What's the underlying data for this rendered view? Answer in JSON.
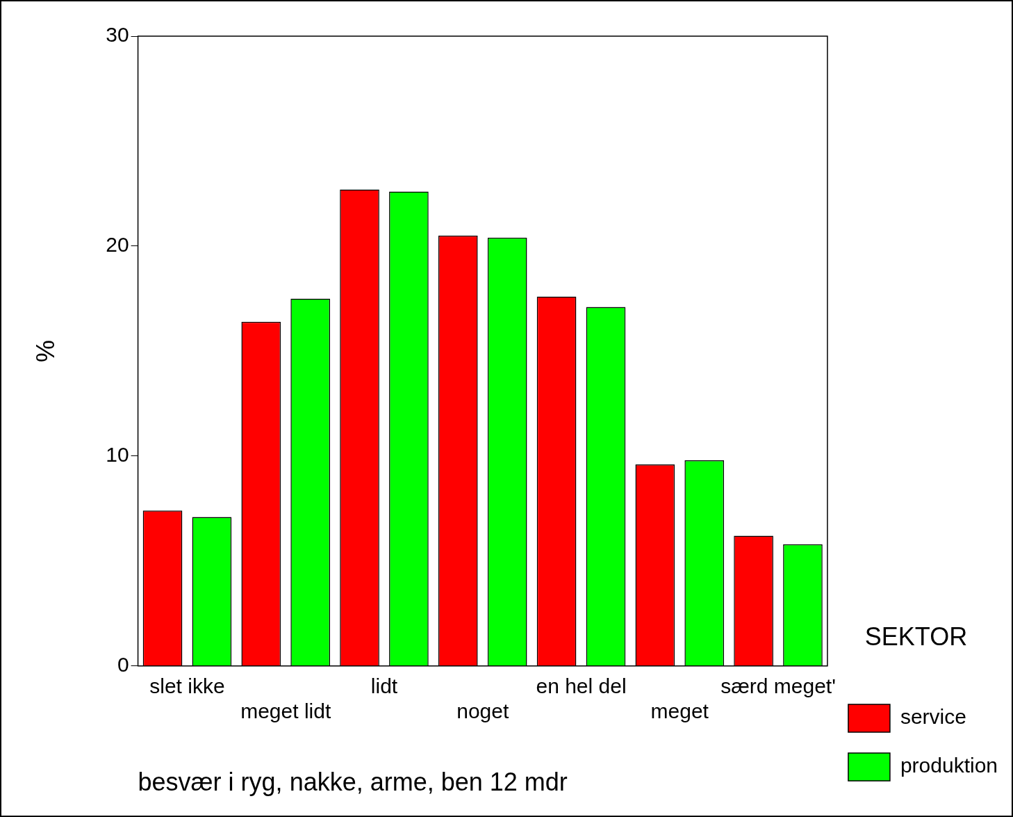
{
  "chart_data": {
    "type": "bar",
    "ylabel": "%",
    "xlabel": "besvær i ryg, nakke, arme, ben 12 mdr",
    "legend_title": "SEKTOR",
    "legend": "right",
    "grid": false,
    "categories": [
      "slet ikke",
      "meget lidt",
      "lidt",
      "noget",
      "en hel del",
      "meget",
      "særd meget'"
    ],
    "series": [
      {
        "name": "service",
        "color": "#ff0000",
        "values": [
          7.4,
          16.4,
          22.7,
          20.5,
          17.6,
          9.6,
          6.2
        ]
      },
      {
        "name": "produktion",
        "color": "#00ff00",
        "values": [
          7.1,
          17.5,
          22.6,
          20.4,
          17.1,
          9.8,
          5.8
        ]
      }
    ],
    "ylim": [
      0,
      30
    ],
    "yticks": [
      0,
      10,
      20,
      30
    ]
  }
}
